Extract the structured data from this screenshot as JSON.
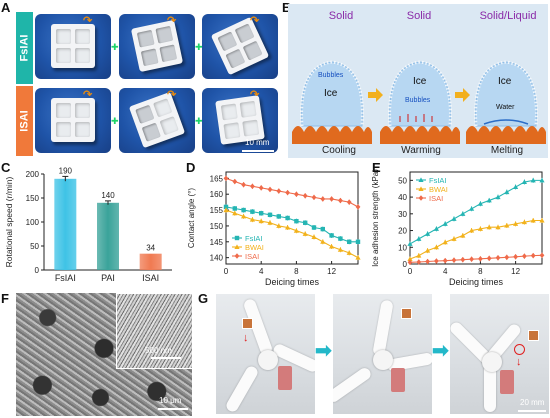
{
  "panels": {
    "a": "A",
    "b": "B",
    "c": "C",
    "d": "D",
    "e": "E",
    "f": "F",
    "g": "G"
  },
  "panel_a": {
    "row_labels": [
      "FsIAI",
      "ISAI"
    ],
    "scale_bar": "10 mm",
    "colors": {
      "fsiai_tag": "#1fb5a9",
      "isai_tag": "#f0793a",
      "plate": "#1f54a8",
      "arrow": "#e58a12"
    }
  },
  "panel_b": {
    "headers": [
      "Solid",
      "Solid",
      "Solid/Liquid"
    ],
    "ice": [
      "Ice",
      "Ice",
      "Ice"
    ],
    "bubbles": [
      "Bubbles",
      "Bubbles"
    ],
    "water": "Water",
    "footers": [
      "Cooling",
      "Warming",
      "Melting"
    ],
    "colors": {
      "background": "#dbe8f3",
      "substrate": "#e06a1e",
      "ice": "#b7d7f2"
    }
  },
  "panel_f": {
    "scale_inset": "500 nm",
    "scale_main": "10 μm"
  },
  "panel_g": {
    "scale": "20 mm"
  },
  "chart_data": [
    {
      "id": "C",
      "type": "bar",
      "categories": [
        "FsIAI",
        "PAI",
        "ISAI"
      ],
      "values": [
        190,
        140,
        34
      ],
      "value_labels": [
        "190",
        "140",
        "34"
      ],
      "errors": [
        5,
        4,
        0
      ],
      "colors": [
        "#3fc3e6",
        "#3aa39a",
        "#f07a52"
      ],
      "ylabel": "Rotational speed (r/min)",
      "ylim": [
        0,
        200
      ],
      "yticks": [
        0,
        50,
        100,
        150,
        200
      ]
    },
    {
      "id": "D",
      "type": "line",
      "xlabel": "Deicing times",
      "ylabel": "Contact angle (°)",
      "xlim": [
        0,
        15
      ],
      "ylim": [
        138,
        167
      ],
      "xticks": [
        0,
        4,
        8,
        12
      ],
      "yticks": [
        140,
        145,
        150,
        155,
        160,
        165
      ],
      "legend_position": "bottom-left",
      "x": [
        0,
        1,
        2,
        3,
        4,
        5,
        6,
        7,
        8,
        9,
        10,
        11,
        12,
        13,
        14,
        15
      ],
      "series": [
        {
          "name": "FsIAI",
          "color": "#25b5b3",
          "marker": "square",
          "values": [
            156,
            155.5,
            155,
            154.5,
            154,
            153.5,
            153,
            152.5,
            151.5,
            151,
            149.5,
            149,
            147,
            146,
            145,
            145
          ]
        },
        {
          "name": "BWAI",
          "color": "#f2b21c",
          "marker": "triangle",
          "values": [
            155,
            154,
            153,
            152,
            151.5,
            151,
            150,
            149.5,
            148.5,
            147.5,
            146.5,
            145,
            143.5,
            142.5,
            141.5,
            140
          ]
        },
        {
          "name": "ISAI",
          "color": "#ef6a4a",
          "marker": "diamond",
          "values": [
            165,
            164,
            163,
            162.5,
            162,
            161.5,
            161,
            160.5,
            160,
            159.5,
            159,
            158.5,
            158.5,
            158,
            157.5,
            156
          ]
        }
      ]
    },
    {
      "id": "E",
      "type": "line",
      "xlabel": "Deicing times",
      "ylabel": "Ice adhesion strength (kPa)",
      "xlim": [
        0,
        15
      ],
      "ylim": [
        0,
        55
      ],
      "xticks": [
        0,
        4,
        8,
        12
      ],
      "yticks": [
        0,
        10,
        20,
        30,
        40,
        50
      ],
      "legend_position": "top-left",
      "x": [
        0,
        1,
        2,
        3,
        4,
        5,
        6,
        7,
        8,
        9,
        10,
        11,
        12,
        13,
        14,
        15
      ],
      "series": [
        {
          "name": "FsIAI",
          "color": "#25b5b3",
          "marker": "triangle",
          "values": [
            12,
            15,
            18,
            21,
            24,
            27,
            30,
            33,
            36,
            38,
            40,
            43,
            46,
            49,
            50,
            50
          ]
        },
        {
          "name": "BWAI",
          "color": "#f2b21c",
          "marker": "triangle",
          "values": [
            3,
            5,
            8,
            10,
            13,
            15,
            17,
            20,
            21,
            22,
            22,
            23,
            24,
            25,
            26,
            26
          ]
        },
        {
          "name": "ISAI",
          "color": "#ef6a4a",
          "marker": "diamond",
          "values": [
            1,
            1.2,
            1.5,
            1.8,
            2,
            2.3,
            2.6,
            2.9,
            3.1,
            3.4,
            3.7,
            4,
            4.3,
            4.7,
            5,
            5.2
          ]
        }
      ]
    }
  ]
}
